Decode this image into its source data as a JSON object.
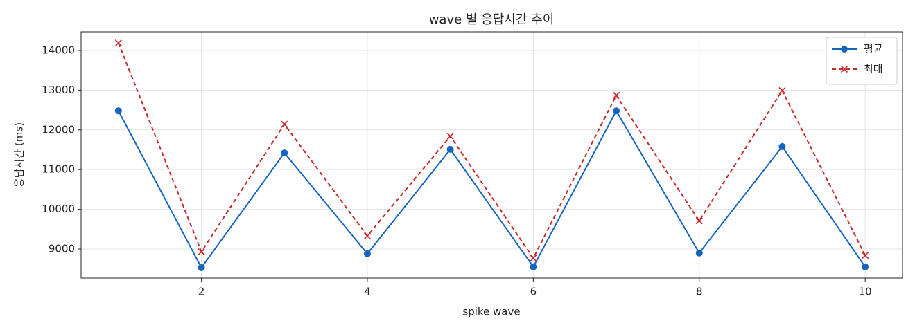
{
  "chart_data": {
    "type": "line",
    "title": "wave 별 응답시간 추이",
    "x_label": "spike wave",
    "y_label": "응답시간 (ms)",
    "x": [
      1,
      2,
      3,
      4,
      5,
      6,
      7,
      8,
      9,
      10
    ],
    "series": [
      {
        "name": "평균",
        "color": "#1565c0",
        "marker": "circle",
        "dash": false,
        "values": [
          12480,
          8530,
          11420,
          8880,
          11510,
          8550,
          12480,
          8900,
          11580,
          8550
        ]
      },
      {
        "name": "최대",
        "color": "#c62828",
        "marker": "x",
        "dash": true,
        "values": [
          14190,
          8930,
          12140,
          9330,
          11840,
          8770,
          12870,
          9710,
          12990,
          8840
        ]
      }
    ],
    "xlim": [
      0.55,
      10.45
    ],
    "xticks": [
      2,
      4,
      6,
      8,
      10
    ],
    "ylim": [
      8268,
      14470
    ],
    "yticks": [
      9000,
      10000,
      11000,
      12000,
      13000,
      14000
    ],
    "grid": true,
    "legend": "upper right"
  }
}
